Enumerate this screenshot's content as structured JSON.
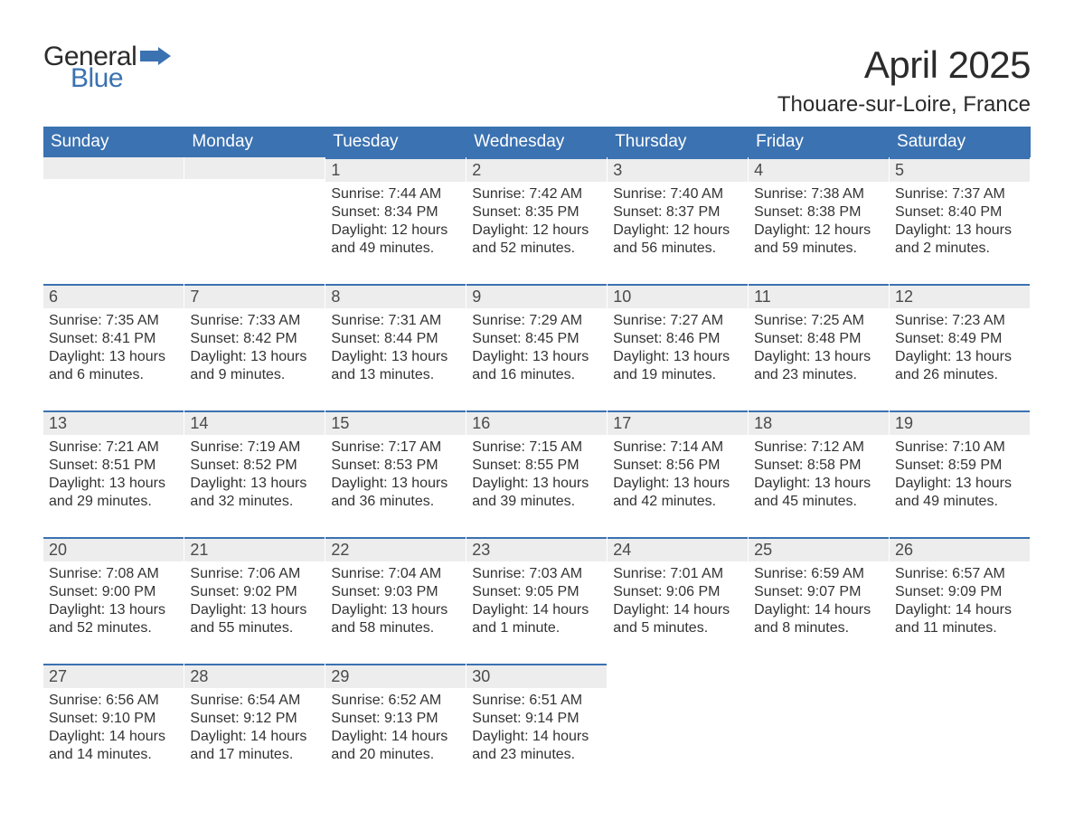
{
  "brand": {
    "line1": "General",
    "line2": "Blue",
    "text_color": "#2b2b2b",
    "accent_color": "#3b72b1",
    "logo_fontsize": 30
  },
  "title": {
    "month": "April 2025",
    "location": "Thouare-sur-Loire, France",
    "month_fontsize": 42,
    "location_fontsize": 24
  },
  "style": {
    "header_bg": "#3b72b1",
    "header_text": "#ffffff",
    "daybar_bg": "#ededed",
    "daybar_border": "#3b72b1",
    "body_text": "#333333",
    "daynum_color": "#4a4a4a",
    "page_bg": "#ffffff",
    "header_fontsize": 19,
    "daynum_fontsize": 18,
    "body_fontsize": 16
  },
  "weekdays": [
    "Sunday",
    "Monday",
    "Tuesday",
    "Wednesday",
    "Thursday",
    "Friday",
    "Saturday"
  ],
  "weeks": [
    [
      null,
      null,
      {
        "d": "1",
        "sr": "Sunrise: 7:44 AM",
        "ss": "Sunset: 8:34 PM",
        "dl1": "Daylight: 12 hours",
        "dl2": "and 49 minutes."
      },
      {
        "d": "2",
        "sr": "Sunrise: 7:42 AM",
        "ss": "Sunset: 8:35 PM",
        "dl1": "Daylight: 12 hours",
        "dl2": "and 52 minutes."
      },
      {
        "d": "3",
        "sr": "Sunrise: 7:40 AM",
        "ss": "Sunset: 8:37 PM",
        "dl1": "Daylight: 12 hours",
        "dl2": "and 56 minutes."
      },
      {
        "d": "4",
        "sr": "Sunrise: 7:38 AM",
        "ss": "Sunset: 8:38 PM",
        "dl1": "Daylight: 12 hours",
        "dl2": "and 59 minutes."
      },
      {
        "d": "5",
        "sr": "Sunrise: 7:37 AM",
        "ss": "Sunset: 8:40 PM",
        "dl1": "Daylight: 13 hours",
        "dl2": "and 2 minutes."
      }
    ],
    [
      {
        "d": "6",
        "sr": "Sunrise: 7:35 AM",
        "ss": "Sunset: 8:41 PM",
        "dl1": "Daylight: 13 hours",
        "dl2": "and 6 minutes."
      },
      {
        "d": "7",
        "sr": "Sunrise: 7:33 AM",
        "ss": "Sunset: 8:42 PM",
        "dl1": "Daylight: 13 hours",
        "dl2": "and 9 minutes."
      },
      {
        "d": "8",
        "sr": "Sunrise: 7:31 AM",
        "ss": "Sunset: 8:44 PM",
        "dl1": "Daylight: 13 hours",
        "dl2": "and 13 minutes."
      },
      {
        "d": "9",
        "sr": "Sunrise: 7:29 AM",
        "ss": "Sunset: 8:45 PM",
        "dl1": "Daylight: 13 hours",
        "dl2": "and 16 minutes."
      },
      {
        "d": "10",
        "sr": "Sunrise: 7:27 AM",
        "ss": "Sunset: 8:46 PM",
        "dl1": "Daylight: 13 hours",
        "dl2": "and 19 minutes."
      },
      {
        "d": "11",
        "sr": "Sunrise: 7:25 AM",
        "ss": "Sunset: 8:48 PM",
        "dl1": "Daylight: 13 hours",
        "dl2": "and 23 minutes."
      },
      {
        "d": "12",
        "sr": "Sunrise: 7:23 AM",
        "ss": "Sunset: 8:49 PM",
        "dl1": "Daylight: 13 hours",
        "dl2": "and 26 minutes."
      }
    ],
    [
      {
        "d": "13",
        "sr": "Sunrise: 7:21 AM",
        "ss": "Sunset: 8:51 PM",
        "dl1": "Daylight: 13 hours",
        "dl2": "and 29 minutes."
      },
      {
        "d": "14",
        "sr": "Sunrise: 7:19 AM",
        "ss": "Sunset: 8:52 PM",
        "dl1": "Daylight: 13 hours",
        "dl2": "and 32 minutes."
      },
      {
        "d": "15",
        "sr": "Sunrise: 7:17 AM",
        "ss": "Sunset: 8:53 PM",
        "dl1": "Daylight: 13 hours",
        "dl2": "and 36 minutes."
      },
      {
        "d": "16",
        "sr": "Sunrise: 7:15 AM",
        "ss": "Sunset: 8:55 PM",
        "dl1": "Daylight: 13 hours",
        "dl2": "and 39 minutes."
      },
      {
        "d": "17",
        "sr": "Sunrise: 7:14 AM",
        "ss": "Sunset: 8:56 PM",
        "dl1": "Daylight: 13 hours",
        "dl2": "and 42 minutes."
      },
      {
        "d": "18",
        "sr": "Sunrise: 7:12 AM",
        "ss": "Sunset: 8:58 PM",
        "dl1": "Daylight: 13 hours",
        "dl2": "and 45 minutes."
      },
      {
        "d": "19",
        "sr": "Sunrise: 7:10 AM",
        "ss": "Sunset: 8:59 PM",
        "dl1": "Daylight: 13 hours",
        "dl2": "and 49 minutes."
      }
    ],
    [
      {
        "d": "20",
        "sr": "Sunrise: 7:08 AM",
        "ss": "Sunset: 9:00 PM",
        "dl1": "Daylight: 13 hours",
        "dl2": "and 52 minutes."
      },
      {
        "d": "21",
        "sr": "Sunrise: 7:06 AM",
        "ss": "Sunset: 9:02 PM",
        "dl1": "Daylight: 13 hours",
        "dl2": "and 55 minutes."
      },
      {
        "d": "22",
        "sr": "Sunrise: 7:04 AM",
        "ss": "Sunset: 9:03 PM",
        "dl1": "Daylight: 13 hours",
        "dl2": "and 58 minutes."
      },
      {
        "d": "23",
        "sr": "Sunrise: 7:03 AM",
        "ss": "Sunset: 9:05 PM",
        "dl1": "Daylight: 14 hours",
        "dl2": "and 1 minute."
      },
      {
        "d": "24",
        "sr": "Sunrise: 7:01 AM",
        "ss": "Sunset: 9:06 PM",
        "dl1": "Daylight: 14 hours",
        "dl2": "and 5 minutes."
      },
      {
        "d": "25",
        "sr": "Sunrise: 6:59 AM",
        "ss": "Sunset: 9:07 PM",
        "dl1": "Daylight: 14 hours",
        "dl2": "and 8 minutes."
      },
      {
        "d": "26",
        "sr": "Sunrise: 6:57 AM",
        "ss": "Sunset: 9:09 PM",
        "dl1": "Daylight: 14 hours",
        "dl2": "and 11 minutes."
      }
    ],
    [
      {
        "d": "27",
        "sr": "Sunrise: 6:56 AM",
        "ss": "Sunset: 9:10 PM",
        "dl1": "Daylight: 14 hours",
        "dl2": "and 14 minutes."
      },
      {
        "d": "28",
        "sr": "Sunrise: 6:54 AM",
        "ss": "Sunset: 9:12 PM",
        "dl1": "Daylight: 14 hours",
        "dl2": "and 17 minutes."
      },
      {
        "d": "29",
        "sr": "Sunrise: 6:52 AM",
        "ss": "Sunset: 9:13 PM",
        "dl1": "Daylight: 14 hours",
        "dl2": "and 20 minutes."
      },
      {
        "d": "30",
        "sr": "Sunrise: 6:51 AM",
        "ss": "Sunset: 9:14 PM",
        "dl1": "Daylight: 14 hours",
        "dl2": "and 23 minutes."
      },
      null,
      null,
      null
    ]
  ]
}
